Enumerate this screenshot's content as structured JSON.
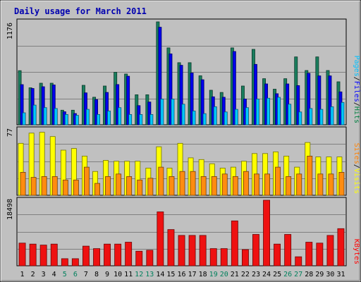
{
  "chart_data": {
    "type": "bar",
    "title": "Daily usage for March 2011",
    "days": [
      "1",
      "2",
      "3",
      "4",
      "5",
      "6",
      "7",
      "8",
      "9",
      "10",
      "11",
      "12",
      "13",
      "14",
      "15",
      "16",
      "17",
      "18",
      "19",
      "20",
      "21",
      "22",
      "23",
      "24",
      "25",
      "26",
      "27",
      "28",
      "29",
      "30",
      "31"
    ],
    "weekend_days": [
      "5",
      "6",
      "12",
      "13",
      "19",
      "20",
      "26",
      "27"
    ],
    "panels": [
      {
        "name": "hits-files-pages",
        "ymax_label": "1176",
        "ymax": 1176,
        "legend": [
          {
            "label": "Pages",
            "color": "#00c0ff"
          },
          {
            "label": "/",
            "color": "#000000"
          },
          {
            "label": "Files",
            "color": "#0000ff"
          },
          {
            "label": "/",
            "color": "#000000"
          },
          {
            "label": "Hits",
            "color": "#008040"
          }
        ],
        "series": [
          {
            "name": "Hits",
            "color": "#1a7e5e",
            "values": [
              619,
              423,
              475,
              475,
              167,
              167,
              451,
              315,
              443,
              600,
              580,
              343,
              343,
              1176,
              879,
              710,
              710,
              560,
              395,
              370,
              879,
              443,
              862,
              527,
              407,
              527,
              776,
              620,
              776,
              620,
              491
            ]
          },
          {
            "name": "Files",
            "color": "#0000ee",
            "values": [
              459,
              415,
              435,
              455,
              149,
              129,
              365,
              288,
              370,
              460,
              555,
              219,
              260,
              1115,
              810,
              680,
              592,
              515,
              320,
              315,
              838,
              295,
              690,
              467,
              355,
              467,
              448,
              589,
              559,
              559,
              376
            ]
          },
          {
            "name": "Pages",
            "color": "#00c8ff",
            "values": [
              137,
              225,
              196,
              186,
              118,
              108,
              176,
              118,
              157,
              196,
              118,
              118,
              118,
              294,
              294,
              235,
              157,
              127,
              206,
              147,
              176,
              196,
              294,
              304,
              314,
              235,
              147,
              186,
              176,
              206,
              255
            ]
          }
        ]
      },
      {
        "name": "visits-sites",
        "ymax_label": "77",
        "ymax": 77,
        "legend": [
          {
            "label": "Sites",
            "color": "#ff8000"
          },
          {
            "label": "/",
            "color": "#000000"
          },
          {
            "label": "Visits",
            "color": "#ffff00"
          }
        ],
        "series": [
          {
            "name": "Visits",
            "color": "#ffff00",
            "values": [
              61,
              73,
              74,
              69,
              53,
              55,
              46,
              28,
              41,
              40,
              40,
              40,
              32,
              57,
              32,
              61,
              44,
              42,
              37,
              32,
              33,
              40,
              49,
              49,
              51,
              46,
              33,
              62,
              45,
              45,
              45
            ]
          },
          {
            "name": "Sites",
            "color": "#ff8c10",
            "values": [
              27,
              21,
              22,
              22,
              18,
              18,
              33,
              14,
              22,
              25,
              22,
              18,
              20,
              33,
              22,
              28,
              28,
              22,
              22,
              25,
              22,
              28,
              25,
              25,
              33,
              22,
              25,
              46,
              25,
              25,
              27
            ]
          }
        ]
      },
      {
        "name": "kbytes",
        "ymax_label": "18498",
        "ymax": 18498,
        "legend": [
          {
            "label": "KBytes",
            "color": "#ff0000"
          }
        ],
        "series": [
          {
            "name": "KBytes",
            "color": "#ee1111",
            "values": [
              6398,
              6125,
              5851,
              6125,
              2000,
              2000,
              5551,
              4851,
              6125,
              6125,
              6669,
              4125,
              4398,
              15217,
              10217,
              8582,
              8582,
              8582,
              4851,
              4851,
              12672,
              4578,
              8855,
              18498,
              6125,
              8855,
              2545,
              6669,
              6398,
              8582,
              10491
            ]
          }
        ]
      }
    ]
  }
}
